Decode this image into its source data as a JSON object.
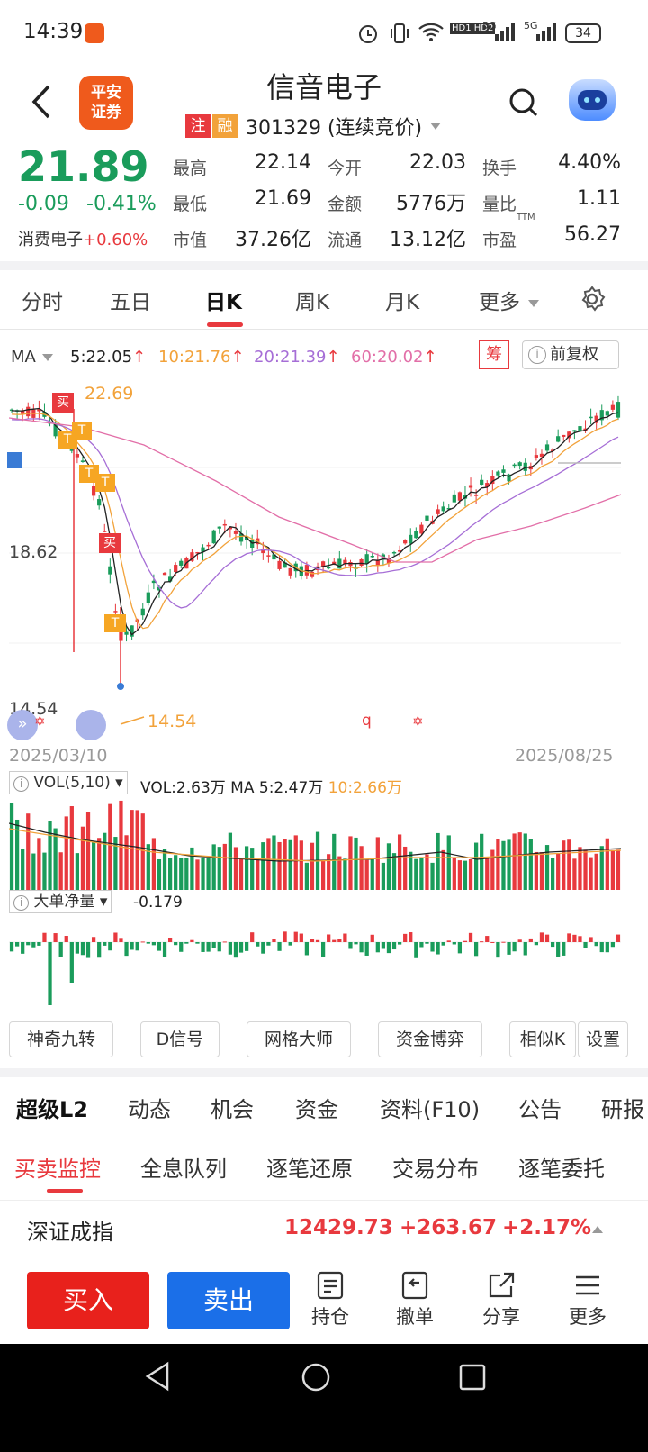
{
  "status": {
    "time": "14:39",
    "net1": "5G",
    "net2": "5G",
    "battery": "34",
    "hd": "HD1 HD2"
  },
  "header": {
    "title": "信音电子",
    "badge_zhu": "注",
    "badge_rong": "融",
    "code_line": "301329 (连续竞价)",
    "logo_line1": "平安",
    "logo_line2": "证券"
  },
  "quote": {
    "price": "21.89",
    "change": "-0.09",
    "change_pct": "-0.41%",
    "sector_name": "消费电子",
    "sector_pct": "+0.60%",
    "rows": [
      [
        {
          "label": "最高",
          "value": "22.14",
          "color": "red"
        },
        {
          "label": "今开",
          "value": "22.03",
          "color": "red"
        },
        {
          "label": "换手",
          "value": "4.40%",
          "color": "dark"
        }
      ],
      [
        {
          "label": "最低",
          "value": "21.69",
          "color": "green"
        },
        {
          "label": "金额",
          "value": "5776万",
          "color": "dark"
        },
        {
          "label": "量比",
          "value": "1.11",
          "color": "dark"
        }
      ],
      [
        {
          "label": "市值",
          "value": "37.26亿",
          "color": "dark"
        },
        {
          "label": "流通",
          "value": "13.12亿",
          "color": "dark"
        },
        {
          "label": "市盈",
          "value": "56.27",
          "color": "dark"
        }
      ]
    ],
    "ttm": "TTM"
  },
  "tabs": {
    "items": [
      "分时",
      "五日",
      "日K",
      "周K",
      "月K",
      "更多"
    ],
    "active": "日K"
  },
  "ma": {
    "label": "MA",
    "ma5": "5:22.05",
    "ma10": "10:21.76",
    "ma20": "20:21.39",
    "ma60": "60:20.02",
    "chou": "筹",
    "fuquan": "前复权"
  },
  "kline": {
    "high_label": "22.69",
    "mid_label": "18.62",
    "low_label": "14.54",
    "low_marker": "14.54",
    "date_start": "2025/03/10",
    "date_end": "2025/08/25",
    "buy_tag": "买",
    "t_tag": "T",
    "q_tag": "q"
  },
  "vol": {
    "ind_label": "VOL(5,10)",
    "vol_value": "VOL:2.63万",
    "ma_prefix": "MA",
    "ma5": "5:2.47万",
    "ma10": "10:2.66万"
  },
  "dadan": {
    "ind_label": "大单净量",
    "value": "-0.179"
  },
  "tools": [
    "神奇九转",
    "D信号",
    "网格大师",
    "资金博弈",
    "相似K",
    "设置"
  ],
  "section_tabs": [
    "超级L2",
    "动态",
    "机会",
    "资金",
    "资料(F10)",
    "公告",
    "研报"
  ],
  "sub_tabs": [
    "买卖监控",
    "全息队列",
    "逐笔还原",
    "交易分布",
    "逐笔委托"
  ],
  "index": {
    "name": "深证成指",
    "value": "12429.73",
    "change": "+263.67",
    "pct": "+2.17%"
  },
  "bottom": {
    "buy": "买入",
    "sell": "卖出",
    "items": [
      "持仓",
      "撤单",
      "分享",
      "更多"
    ]
  },
  "colors": {
    "up": "#e8393e",
    "down": "#1a9c5b",
    "ma5": "#222222",
    "ma10": "#f2a23a",
    "ma20": "#a66ed6",
    "ma60": "#e26fa8"
  }
}
